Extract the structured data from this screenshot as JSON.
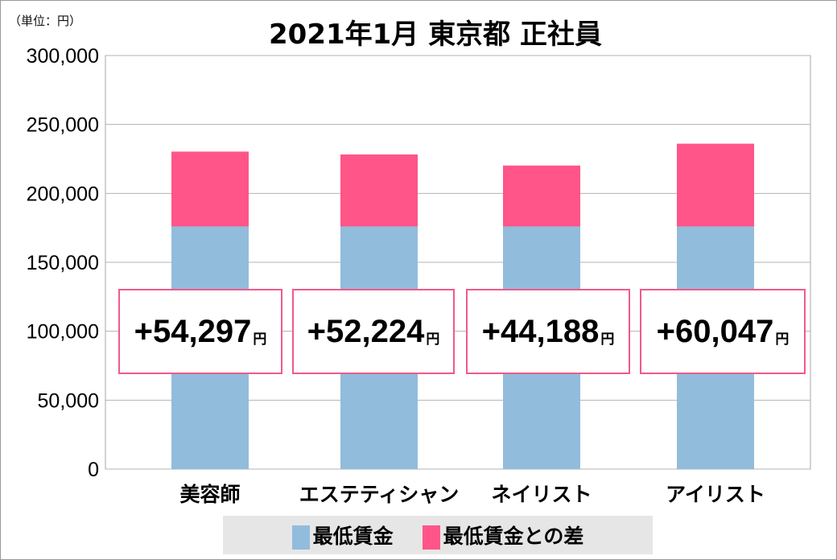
{
  "chart_data": {
    "type": "bar",
    "stacked": true,
    "title": "2021年1月 東京都 正社員",
    "unit_label": "（単位：円）",
    "categories": [
      "美容師",
      "エステティシャン",
      "ネイリスト",
      "アイリスト"
    ],
    "series": [
      {
        "name": "最低賃金",
        "color": "#92bcdc",
        "values": [
          176000,
          176000,
          176000,
          176000
        ]
      },
      {
        "name": "最低賃金との差",
        "color": "#ff5589",
        "values": [
          54297,
          52224,
          44188,
          60047
        ]
      }
    ],
    "callouts": [
      "+54,297",
      "+52,224",
      "+44,188",
      "+60,047"
    ],
    "callout_unit": "円",
    "yticks": [
      "0",
      "50,000",
      "100,000",
      "150,000",
      "200,000",
      "250,000",
      "300,000"
    ],
    "ylim": [
      0,
      300000
    ],
    "grid": true,
    "legend": "bottom"
  }
}
